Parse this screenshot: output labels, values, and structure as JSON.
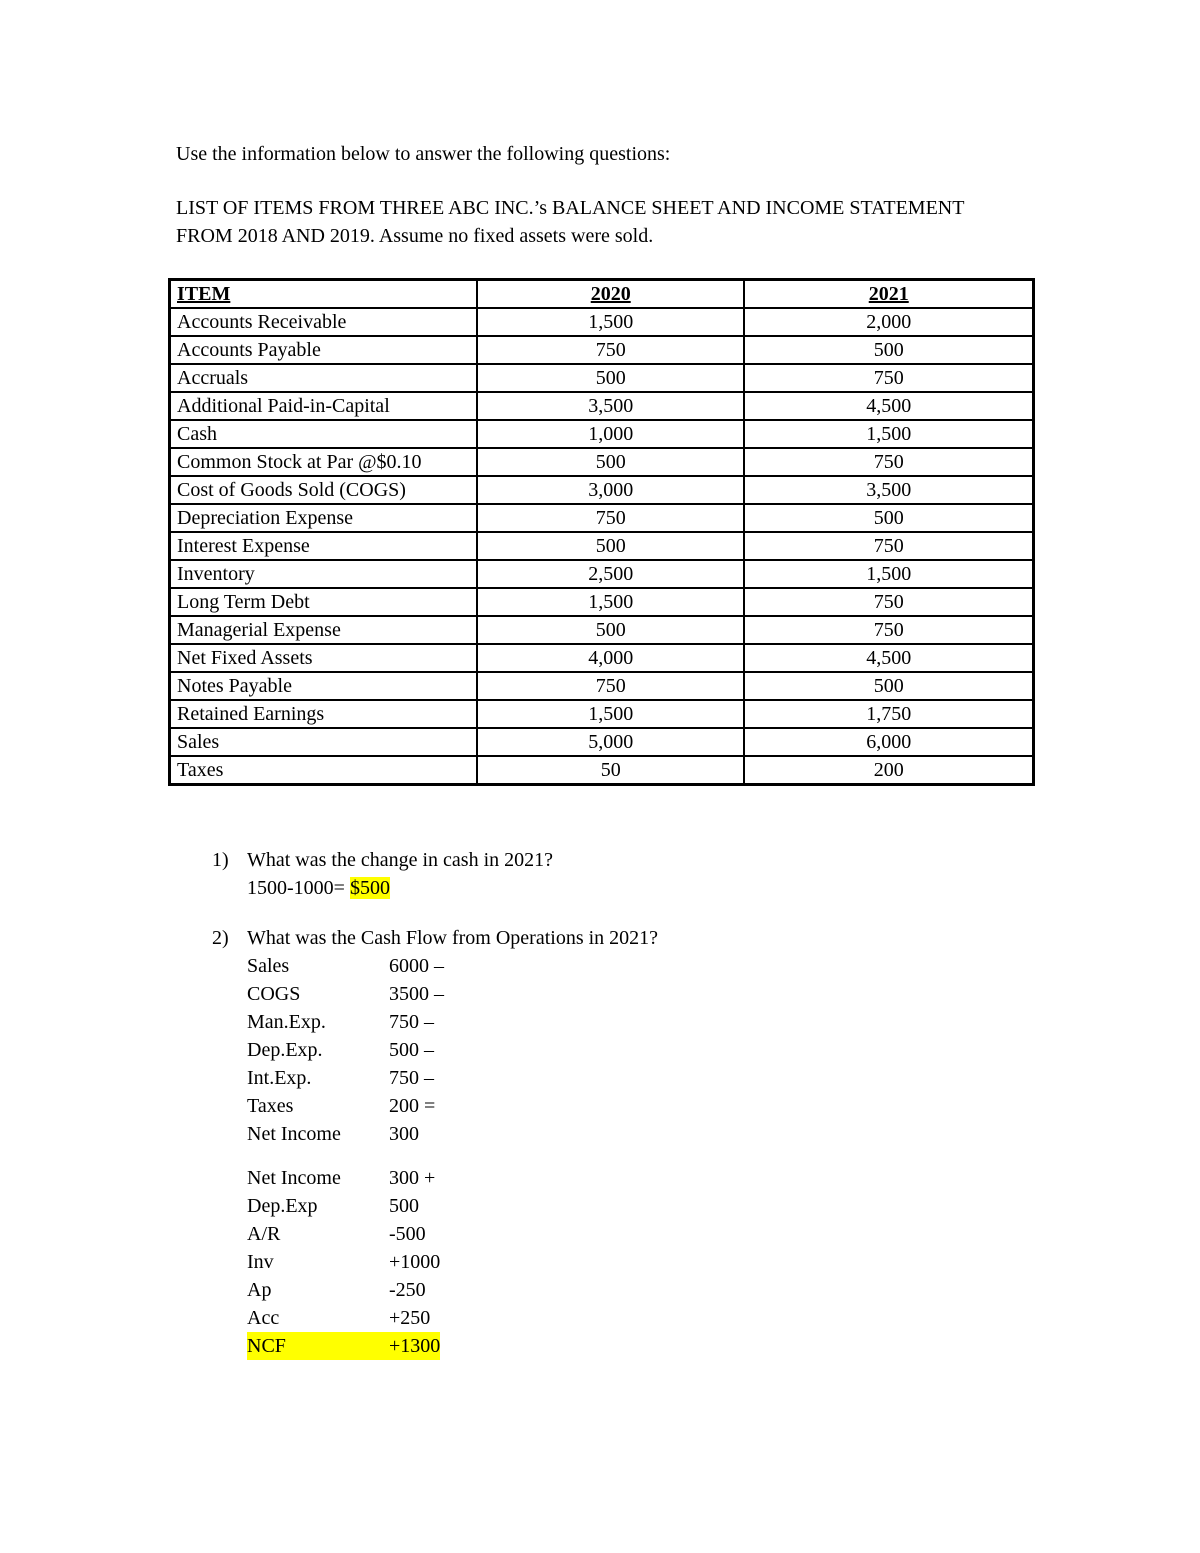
{
  "colors": {
    "highlight": "#ffff00",
    "text": "#000000",
    "page_background": "#ffffff"
  },
  "intro": "Use the information below to answer the following questions:",
  "subtitle": "LIST OF ITEMS FROM THREE ABC INC.’s BALANCE SHEET AND INCOME STATEMENT FROM 2018 AND 2019. Assume no fixed assets were sold.",
  "table": {
    "headers": [
      "ITEM",
      "2020",
      "2021"
    ],
    "rows": [
      {
        "item": "Accounts Receivable",
        "y2020": "1,500",
        "y2021": "2,000"
      },
      {
        "item": "Accounts Payable",
        "y2020": "750",
        "y2021": "500"
      },
      {
        "item": "Accruals",
        "y2020": "500",
        "y2021": "750"
      },
      {
        "item": "Additional Paid-in-Capital",
        "y2020": "3,500",
        "y2021": "4,500"
      },
      {
        "item": "Cash",
        "y2020": "1,000",
        "y2021": "1,500"
      },
      {
        "item": "Common Stock at Par @$0.10",
        "y2020": "500",
        "y2021": "750"
      },
      {
        "item": "Cost of Goods Sold (COGS)",
        "y2020": "3,000",
        "y2021": "3,500"
      },
      {
        "item": "Depreciation Expense",
        "y2020": "750",
        "y2021": "500"
      },
      {
        "item": "Interest Expense",
        "y2020": "500",
        "y2021": "750"
      },
      {
        "item": "Inventory",
        "y2020": "2,500",
        "y2021": "1,500"
      },
      {
        "item": "Long Term Debt",
        "y2020": "1,500",
        "y2021": "750"
      },
      {
        "item": "Managerial Expense",
        "y2020": "500",
        "y2021": "750"
      },
      {
        "item": "Net Fixed Assets",
        "y2020": "4,000",
        "y2021": "4,500"
      },
      {
        "item": "Notes Payable",
        "y2020": "750",
        "y2021": "500"
      },
      {
        "item": "Retained Earnings",
        "y2020": "1,500",
        "y2021": "1,750"
      },
      {
        "item": "Sales",
        "y2020": "5,000",
        "y2021": "6,000"
      },
      {
        "item": "Taxes",
        "y2020": "50",
        "y2021": "200"
      }
    ]
  },
  "question1": {
    "number": "1)",
    "text": "What was the change in cash in 2021?",
    "answer_prefix": "1500-1000= ",
    "answer_highlight": "$500"
  },
  "question2": {
    "number": "2)",
    "text": "What was the Cash Flow from Operations in 2021?"
  },
  "income_calc": {
    "rows": [
      {
        "label": "Sales",
        "value": "6000 –",
        "highlighted": false
      },
      {
        "label": "COGS",
        "value": "3500 –",
        "highlighted": false
      },
      {
        "label": "Man.Exp.",
        "value": "750 –",
        "highlighted": false
      },
      {
        "label": "Dep.Exp.",
        "value": "500 –",
        "highlighted": false
      },
      {
        "label": "Int.Exp.",
        "value": "750 –",
        "highlighted": false
      },
      {
        "label": "Taxes",
        "value": "200 =",
        "highlighted": false
      },
      {
        "label": "Net Income",
        "value": "300",
        "highlighted": false
      }
    ]
  },
  "cashflow_calc": {
    "rows": [
      {
        "label": "Net Income",
        "value": "300 +",
        "highlighted": false
      },
      {
        "label": "Dep.Exp",
        "value": "500",
        "highlighted": false
      },
      {
        "label": "A/R",
        "value": "-500",
        "highlighted": false
      },
      {
        "label": "Inv",
        "value": "+1000",
        "highlighted": false
      },
      {
        "label": "Ap",
        "value": "-250",
        "highlighted": false
      },
      {
        "label": "Acc",
        "value": "+250",
        "highlighted": false
      },
      {
        "label": "NCF",
        "value": "+1300",
        "highlighted": true
      }
    ]
  }
}
